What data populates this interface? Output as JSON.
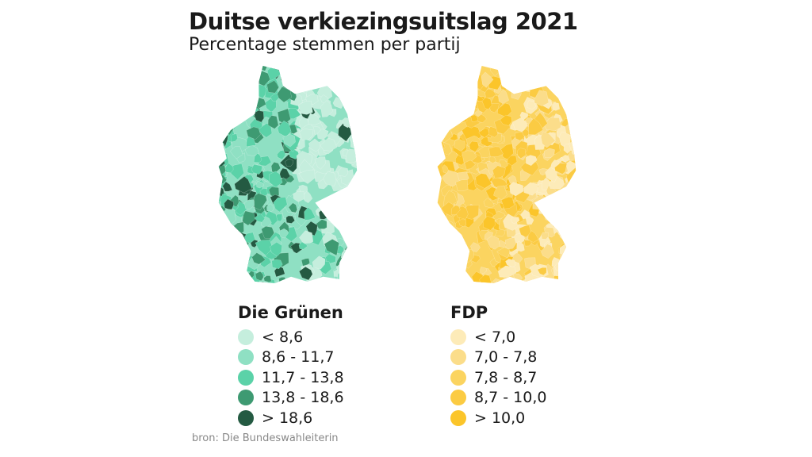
{
  "title": "Duitse verkiezingsuitslag 2021",
  "subtitle": "Percentage stemmen per partij",
  "source": "bron: Die Bundeswahleiterin",
  "maps": [
    {
      "party": "Die Grünen",
      "legend": [
        {
          "label": "< 8,6",
          "color": "#c5eedd"
        },
        {
          "label": "8,6 - 11,7",
          "color": "#8fe0c3"
        },
        {
          "label": "11,7 - 13,8",
          "color": "#5bd2a8"
        },
        {
          "label": "13,8 - 18,6",
          "color": "#3e9a72"
        },
        {
          "label": "> 18,6",
          "color": "#245a42"
        }
      ]
    },
    {
      "party": "FDP",
      "legend": [
        {
          "label": "< 7,0",
          "color": "#fdebb8"
        },
        {
          "label": "7,0 - 7,8",
          "color": "#fbdd8a"
        },
        {
          "label": "7,8 - 8,7",
          "color": "#fbd460"
        },
        {
          "label": "8,7 - 10,0",
          "color": "#fbcb43"
        },
        {
          "label": "> 10,0",
          "color": "#fbc52a"
        }
      ]
    }
  ]
}
